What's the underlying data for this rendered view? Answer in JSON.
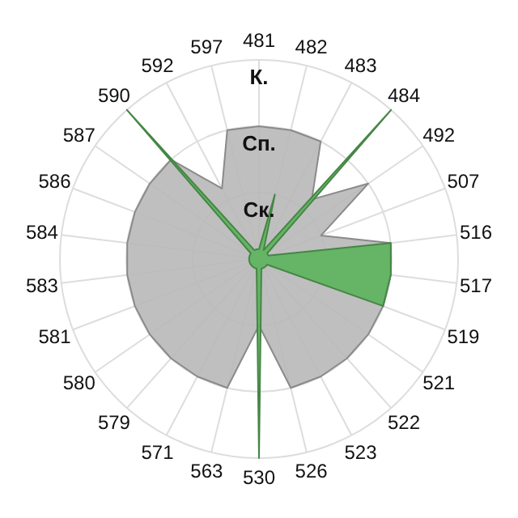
{
  "chart_data": {
    "type": "radar",
    "categories": [
      "481",
      "482",
      "483",
      "484",
      "492",
      "507",
      "516",
      "517",
      "519",
      "521",
      "522",
      "523",
      "526",
      "530",
      "563",
      "571",
      "579",
      "580",
      "581",
      "583",
      "584",
      "586",
      "587",
      "590",
      "592",
      "597"
    ],
    "ylim": [
      0,
      3
    ],
    "yticks": [
      {
        "value": 1,
        "label": "Ск."
      },
      {
        "value": 2,
        "label": "Сп."
      },
      {
        "value": 3,
        "label": "К."
      }
    ],
    "grid": true,
    "series": [
      {
        "color": "#b8b8b8",
        "values": [
          2,
          2,
          2,
          1.2,
          2,
          1,
          2,
          2,
          2,
          2,
          2,
          2,
          2,
          1,
          2,
          2,
          2,
          2,
          2,
          2,
          2,
          2,
          2,
          2,
          1.2,
          2
        ]
      },
      {
        "color": "#5cb25c",
        "values": [
          0.15,
          1,
          0.15,
          3,
          0.15,
          0.15,
          2,
          2,
          2,
          0.15,
          0.15,
          0.15,
          0.15,
          3,
          0.15,
          0.15,
          0.15,
          0.15,
          0.15,
          0.15,
          0.15,
          0.15,
          0.15,
          3,
          0.15,
          0.15
        ]
      }
    ]
  }
}
